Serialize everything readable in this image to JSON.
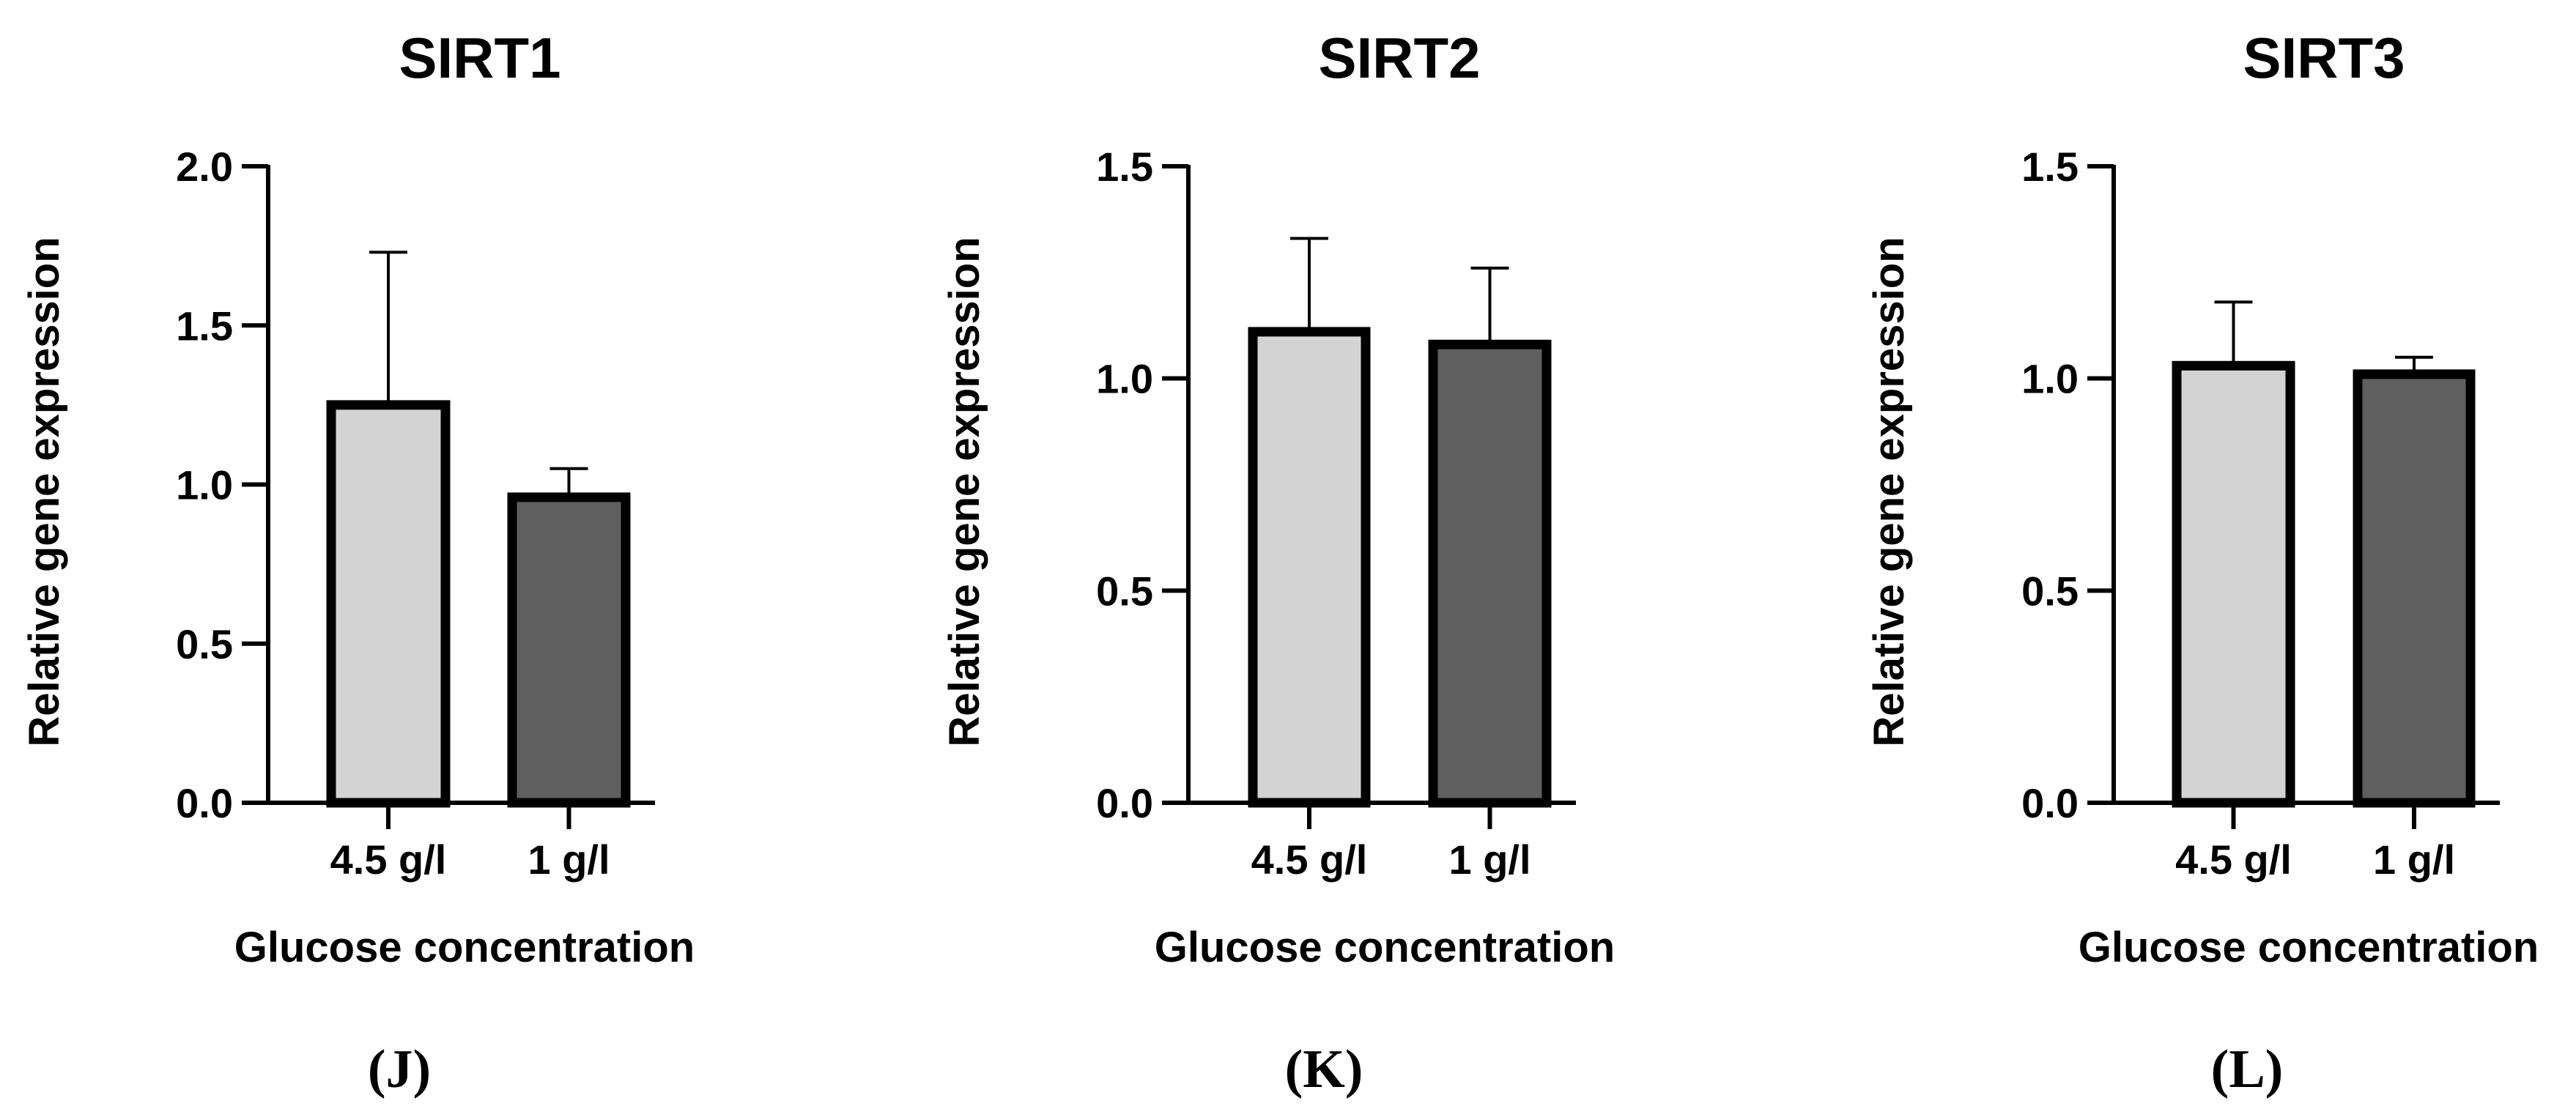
{
  "chart_data": [
    {
      "type": "bar",
      "title": "SIRT1",
      "xlabel": "Glucose concentration",
      "ylabel": "Relative gene expression",
      "categories": [
        "4.5 g/l",
        "1 g/l"
      ],
      "values": [
        1.25,
        0.96
      ],
      "error_upper": [
        1.73,
        1.05
      ],
      "ylim": [
        0,
        2.0
      ],
      "yticks": [
        "0.0",
        "0.5",
        "1.0",
        "1.5",
        "2.0"
      ],
      "bar_colors": [
        "#d3d3d3",
        "#5f5f5f"
      ],
      "panel_label": "(J)"
    },
    {
      "type": "bar",
      "title": "SIRT2",
      "xlabel": "Glucose concentration",
      "ylabel": "Relative gene expression",
      "categories": [
        "4.5 g/l",
        "1 g/l"
      ],
      "values": [
        1.11,
        1.08
      ],
      "error_upper": [
        1.33,
        1.26
      ],
      "ylim": [
        0,
        1.5
      ],
      "yticks": [
        "0.0",
        "0.5",
        "1.0",
        "1.5"
      ],
      "bar_colors": [
        "#d3d3d3",
        "#5f5f5f"
      ],
      "panel_label": "(K)"
    },
    {
      "type": "bar",
      "title": "SIRT3",
      "xlabel": "Glucose concentration",
      "ylabel": "Relative gene expression",
      "categories": [
        "4.5 g/l",
        "1 g/l"
      ],
      "values": [
        1.03,
        1.01
      ],
      "error_upper": [
        1.18,
        1.05
      ],
      "ylim": [
        0,
        1.5
      ],
      "yticks": [
        "0.0",
        "0.5",
        "1.0",
        "1.5"
      ],
      "bar_colors": [
        "#d3d3d3",
        "#5f5f5f"
      ],
      "panel_label": "(L)"
    }
  ]
}
